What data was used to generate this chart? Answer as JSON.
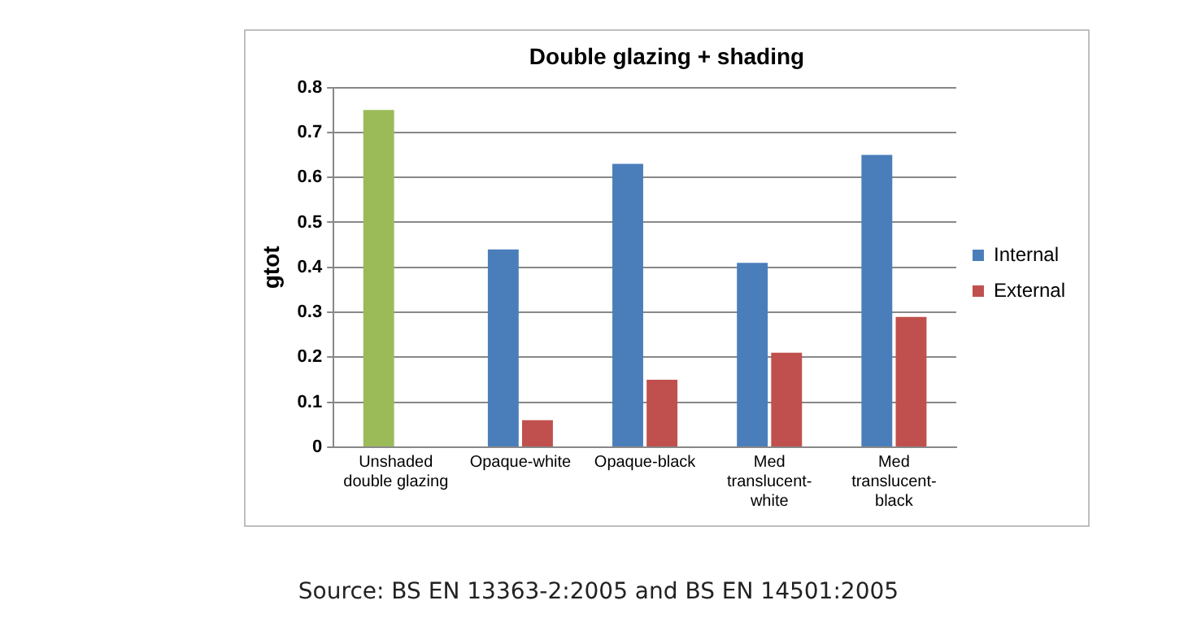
{
  "chart_data": {
    "type": "bar",
    "title": "Double glazing + shading",
    "ylabel": "gtot",
    "categories": [
      "Unshaded double glazing",
      "Opaque-white",
      "Opaque-black",
      "Med translucent-white",
      "Med translucent-black"
    ],
    "series": [
      {
        "name": "Internal",
        "color": "#4a7ebb",
        "colors": [
          "#9bbb59",
          "#4a7ebb",
          "#4a7ebb",
          "#4a7ebb",
          "#4a7ebb"
        ],
        "values": [
          0.75,
          0.44,
          0.63,
          0.41,
          0.65
        ]
      },
      {
        "name": "External",
        "color": "#c0504d",
        "values": [
          null,
          0.06,
          0.15,
          0.21,
          0.29
        ]
      }
    ],
    "ylim": [
      0,
      0.8
    ],
    "yticks": [
      0,
      0.1,
      0.2,
      0.3,
      0.4,
      0.5,
      0.6,
      0.7,
      0.8
    ],
    "grid": "y",
    "legend": "right",
    "annotations": [
      "Source: BS EN 13363-2:2005 and BS EN 14501:2005"
    ]
  }
}
